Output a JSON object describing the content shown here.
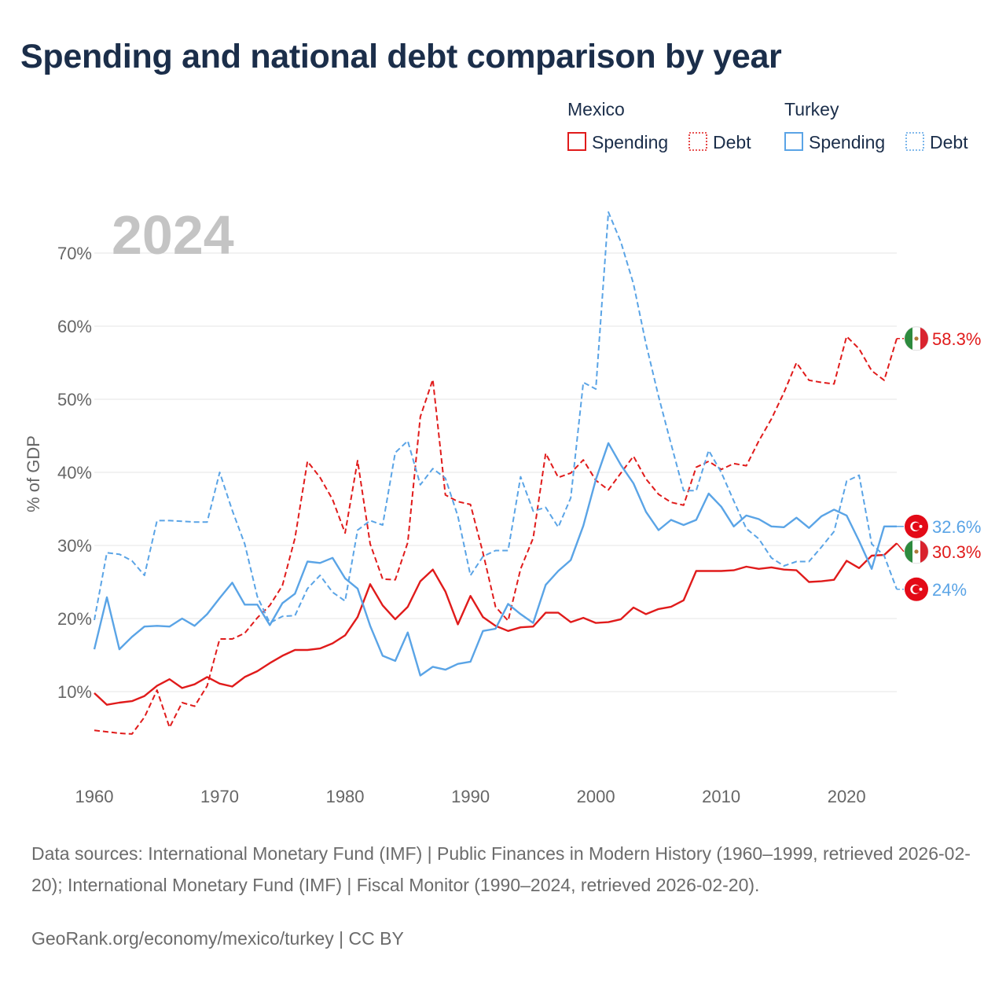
{
  "title": "Spending and national debt comparison by year",
  "year_watermark": "2024",
  "legend": {
    "groups": [
      {
        "country": "Mexico",
        "items": [
          {
            "label": "Spending",
            "style": "solid"
          },
          {
            "label": "Debt",
            "style": "dotted"
          }
        ],
        "color": "#e01b1b"
      },
      {
        "country": "Turkey",
        "items": [
          {
            "label": "Spending",
            "style": "solid"
          },
          {
            "label": "Debt",
            "style": "dotted"
          }
        ],
        "color": "#5aa4e6"
      }
    ]
  },
  "sources_text": "Data sources: International Monetary Fund (IMF) | Public Finances in Modern History (1960–1999, retrieved 2026-02-20); International Monetary Fund (IMF) | Fiscal Monitor (1990–2024, retrieved 2026-02-20).",
  "attribution": "GeoRank.org/economy/mexico/turkey | CC BY",
  "colors": {
    "mexico": "#e01b1b",
    "turkey": "#5aa4e6",
    "grid": "#e6e6e6",
    "axis_text": "#666666",
    "watermark": "#c4c4c4"
  },
  "chart_data": {
    "type": "line",
    "ylabel": "% of GDP",
    "xlabel": "",
    "xlim": [
      1960,
      2024
    ],
    "ylim": [
      0,
      75
    ],
    "x_ticks": [
      1960,
      1970,
      1980,
      1990,
      2000,
      2010,
      2020
    ],
    "y_ticks": [
      10,
      20,
      30,
      40,
      50,
      60,
      70
    ],
    "y_tick_labels": [
      "10%",
      "20%",
      "30%",
      "40%",
      "50%",
      "60%",
      "70%"
    ],
    "x": [
      1960,
      1961,
      1962,
      1963,
      1964,
      1965,
      1966,
      1967,
      1968,
      1969,
      1970,
      1971,
      1972,
      1973,
      1974,
      1975,
      1976,
      1977,
      1978,
      1979,
      1980,
      1981,
      1982,
      1983,
      1984,
      1985,
      1986,
      1987,
      1988,
      1989,
      1990,
      1991,
      1992,
      1993,
      1994,
      1995,
      1996,
      1997,
      1998,
      1999,
      2000,
      2001,
      2002,
      2003,
      2004,
      2005,
      2006,
      2007,
      2008,
      2009,
      2010,
      2011,
      2012,
      2013,
      2014,
      2015,
      2016,
      2017,
      2018,
      2019,
      2020,
      2021,
      2022,
      2023,
      2024
    ],
    "series": [
      {
        "name": "Mexico Spending",
        "country": "Mexico",
        "measure": "Spending",
        "dash": "solid",
        "values": [
          9.8,
          8.2,
          8.5,
          8.7,
          9.4,
          10.8,
          11.7,
          10.5,
          11.0,
          12.0,
          11.1,
          10.7,
          12.0,
          12.8,
          13.9,
          14.9,
          15.7,
          15.7,
          15.9,
          16.6,
          17.7,
          20.2,
          24.7,
          21.8,
          19.9,
          21.6,
          25.1,
          26.7,
          23.7,
          19.2,
          23.1,
          20.2,
          19.0,
          18.3,
          18.8,
          18.9,
          20.8,
          20.8,
          19.5,
          20.1,
          19.4,
          19.5,
          19.9,
          21.5,
          20.6,
          21.3,
          21.6,
          22.5,
          26.5,
          26.5,
          26.5,
          26.6,
          27.1,
          26.8,
          27.0,
          26.7,
          26.6,
          25.0,
          25.1,
          25.3,
          27.9,
          26.9,
          28.6,
          28.7,
          30.3
        ],
        "end_label": "30.3%"
      },
      {
        "name": "Mexico Debt",
        "country": "Mexico",
        "measure": "Debt",
        "dash": "dashed",
        "values": [
          4.7,
          4.5,
          4.3,
          4.2,
          6.5,
          10.2,
          5.1,
          8.5,
          8.0,
          10.8,
          17.2,
          17.2,
          18.0,
          20.1,
          21.8,
          24.5,
          31.0,
          41.5,
          39.3,
          36.3,
          31.7,
          41.6,
          30.2,
          25.4,
          25.3,
          30.4,
          47.6,
          52.7,
          36.9,
          36.0,
          35.6,
          29.0,
          21.6,
          19.7,
          26.8,
          31.0,
          42.6,
          39.3,
          39.9,
          41.7,
          38.9,
          37.6,
          39.9,
          42.2,
          39.1,
          37.0,
          35.9,
          35.5,
          40.7,
          41.5,
          40.4,
          41.2,
          40.9,
          44.3,
          47.3,
          50.9,
          55.0,
          52.6,
          52.3,
          52.1,
          58.6,
          56.9,
          53.9,
          52.6,
          58.3
        ],
        "end_label": "58.3%"
      },
      {
        "name": "Turkey Spending",
        "country": "Turkey",
        "measure": "Spending",
        "dash": "solid",
        "values": [
          15.8,
          22.9,
          15.8,
          17.5,
          18.9,
          19.0,
          18.9,
          20.0,
          19.0,
          20.6,
          22.8,
          24.9,
          21.9,
          21.9,
          19.1,
          22.1,
          23.4,
          27.8,
          27.6,
          28.3,
          25.5,
          24.1,
          19.0,
          14.9,
          14.2,
          18.1,
          12.2,
          13.4,
          13.0,
          13.8,
          14.1,
          18.3,
          18.6,
          22.0,
          20.6,
          19.4,
          24.6,
          26.5,
          28.0,
          32.7,
          39.0,
          44.0,
          41.0,
          38.5,
          34.6,
          32.1,
          33.5,
          32.8,
          33.5,
          37.1,
          35.3,
          32.6,
          34.1,
          33.6,
          32.6,
          32.5,
          33.8,
          32.4,
          34.0,
          34.9,
          34.1,
          30.6,
          26.8,
          32.6,
          32.6
        ],
        "end_label": "32.6%"
      },
      {
        "name": "Turkey Debt",
        "country": "Turkey",
        "measure": "Debt",
        "dash": "dashed",
        "values": [
          19.8,
          29.0,
          28.8,
          27.9,
          25.9,
          33.4,
          33.4,
          33.3,
          33.2,
          33.2,
          40.0,
          34.8,
          30.2,
          23.0,
          19.4,
          20.3,
          20.4,
          24.1,
          25.9,
          23.6,
          22.4,
          32.1,
          33.4,
          32.8,
          42.7,
          44.3,
          38.3,
          40.5,
          39.2,
          34.0,
          25.9,
          28.5,
          29.3,
          29.3,
          39.4,
          34.7,
          35.2,
          32.5,
          36.5,
          52.3,
          51.4,
          75.6,
          71.5,
          65.8,
          57.6,
          50.4,
          43.9,
          37.5,
          37.5,
          43.0,
          40.0,
          36.1,
          32.3,
          30.9,
          28.3,
          27.2,
          27.8,
          27.8,
          29.8,
          31.9,
          38.8,
          39.6,
          30.2,
          28.6,
          24.0
        ],
        "end_label": "24%"
      }
    ]
  }
}
